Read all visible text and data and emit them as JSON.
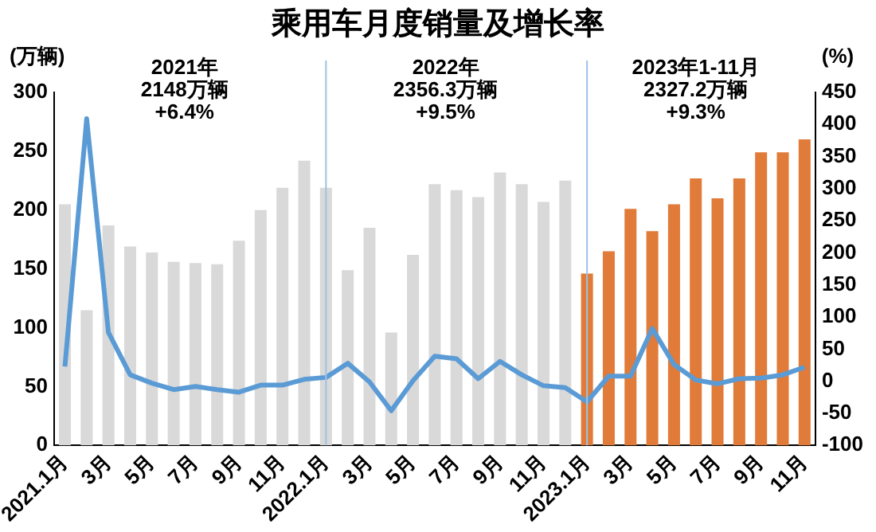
{
  "chart_data": {
    "type": "bar",
    "title": "乘用车月度销量及增长率",
    "ylabel": "(万辆)",
    "y2label": "(%)",
    "annotations": [
      "2021年\n2148万辆\n+6.4%",
      "2022年\n2356.3万辆\n+9.5%",
      "2023年1-11月\n2327.2万辆\n+9.3%"
    ],
    "categories": [
      "2021.1月",
      null,
      "3月",
      null,
      "5月",
      null,
      "7月",
      null,
      "9月",
      null,
      "11月",
      null,
      "2022.1月",
      null,
      "3月",
      null,
      "5月",
      null,
      "7月",
      null,
      "9月",
      null,
      "11月",
      null,
      "2023.1月",
      null,
      "3月",
      null,
      "5月",
      null,
      "7月",
      null,
      "9月",
      null,
      "11月"
    ],
    "series": [
      {
        "colors": [
          "#d9d9d9",
          "#d9d9d9",
          "#d9d9d9",
          "#d9d9d9",
          "#d9d9d9",
          "#d9d9d9",
          "#d9d9d9",
          "#d9d9d9",
          "#d9d9d9",
          "#d9d9d9",
          "#d9d9d9",
          "#d9d9d9",
          "#d9d9d9",
          "#d9d9d9",
          "#d9d9d9",
          "#d9d9d9",
          "#d9d9d9",
          "#d9d9d9",
          "#d9d9d9",
          "#d9d9d9",
          "#d9d9d9",
          "#d9d9d9",
          "#d9d9d9",
          "#d9d9d9",
          "#e07b39",
          "#e07b39",
          "#e07b39",
          "#e07b39",
          "#e07b39",
          "#e07b39",
          "#e07b39",
          "#e07b39",
          "#e07b39",
          "#e07b39",
          "#e07b39"
        ],
        "values": [
          205,
          115,
          187,
          169,
          164,
          156,
          155,
          154,
          174,
          200,
          219,
          242,
          219,
          149,
          185,
          96,
          162,
          222,
          217,
          211,
          232,
          222,
          207,
          225,
          146,
          165,
          201,
          182,
          205,
          227,
          210,
          227,
          249,
          249,
          260
        ]
      },
      {
        "type": "line",
        "axis": "y2",
        "color": "#5b9bd5",
        "values": [
          23,
          409,
          76,
          10,
          -3,
          -13,
          -8,
          -13,
          -17,
          -6,
          -6,
          3,
          6,
          28,
          -1,
          -46,
          1,
          39,
          35,
          4,
          31,
          10,
          -7,
          -10,
          -32,
          8,
          8,
          82,
          26,
          2,
          -4,
          4,
          5,
          10,
          22
        ]
      }
    ],
    "ylim": [
      0,
      300
    ],
    "yticks": [
      0,
      50,
      100,
      150,
      200,
      250,
      300
    ],
    "y2lim": [
      -100,
      450
    ],
    "y2ticks": [
      -100,
      -50,
      0,
      50,
      100,
      150,
      200,
      250,
      300,
      350,
      400,
      450
    ],
    "ref_lines": [
      {
        "axis": "x",
        "value": "2022.1月",
        "color": "#9dc3e6"
      },
      {
        "axis": "x",
        "value": "2023.1月",
        "color": "#9dc3e6"
      }
    ],
    "grid": false,
    "legend": false,
    "marker": "none",
    "line_style": "solid"
  }
}
